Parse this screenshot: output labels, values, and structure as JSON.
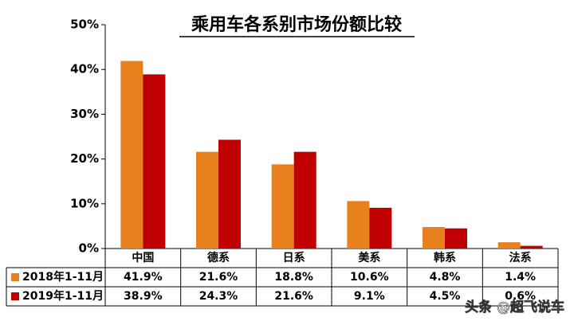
{
  "chart_data": {
    "type": "bar",
    "title": "乘用车各系别市场份额比较",
    "categories": [
      "中国",
      "德系",
      "日系",
      "美系",
      "韩系",
      "法系"
    ],
    "series": [
      {
        "name": "2018年1-11月",
        "color": "#e8801e",
        "values": [
          41.9,
          21.6,
          18.8,
          10.6,
          4.8,
          1.4
        ],
        "value_labels": [
          "41.9%",
          "21.6%",
          "18.8%",
          "10.6%",
          "4.8%",
          "1.4%"
        ]
      },
      {
        "name": "2019年1-11月",
        "color": "#c00000",
        "values": [
          38.9,
          24.3,
          21.6,
          9.1,
          4.5,
          0.6
        ],
        "value_labels": [
          "38.9%",
          "24.3%",
          "21.6%",
          "9.1%",
          "4.5%",
          "0.6%"
        ]
      }
    ],
    "ylim": [
      0,
      50
    ],
    "yticks": [
      {
        "value": 0,
        "label": "0%"
      },
      {
        "value": 10,
        "label": "10%"
      },
      {
        "value": 20,
        "label": "20%"
      },
      {
        "value": 30,
        "label": "30%"
      },
      {
        "value": 40,
        "label": "40%"
      },
      {
        "value": 50,
        "label": "50%"
      }
    ],
    "watermark": "头条 @超飞说车"
  }
}
